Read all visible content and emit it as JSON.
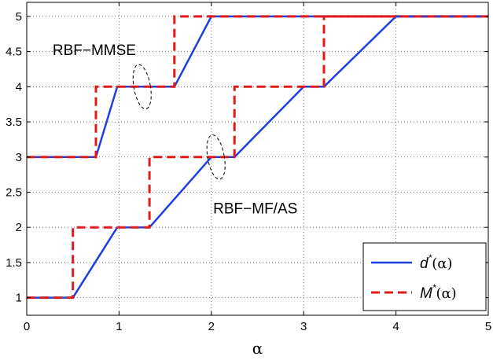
{
  "chart_data": {
    "type": "line",
    "xlabel": "α",
    "ylabel": "",
    "xlim": [
      0,
      5
    ],
    "ylim": [
      0.75,
      5.2
    ],
    "x_ticks": [
      "0",
      "1",
      "2",
      "3",
      "4",
      "5"
    ],
    "y_ticks": [
      "1",
      "1.5",
      "2",
      "2.5",
      "3",
      "3.5",
      "4",
      "4.5",
      "5"
    ],
    "grid": true,
    "legend_position": "bottom-right",
    "colors": {
      "d": "#1f3fe0",
      "M": "#e01a1a"
    },
    "series": [
      {
        "name": "d*(α)",
        "legend_base": "d",
        "legend_sup": "*",
        "legend_arg": "(α)",
        "style": "solid",
        "color": "#1f3fe0",
        "x": [
          0,
          0.75,
          0.98,
          1.6,
          2.0,
          5.0
        ],
        "y": [
          3,
          3,
          4,
          4,
          5,
          5
        ]
      },
      {
        "name": "M*(α)",
        "legend_base": "M",
        "legend_sup": "*",
        "legend_arg": "(α)",
        "style": "dashed",
        "color": "#e01a1a",
        "x": [
          0,
          0.75,
          0.75,
          1.6,
          1.6,
          5.0
        ],
        "y": [
          3,
          3,
          4,
          4,
          5,
          5
        ]
      },
      {
        "name": "d*(α)",
        "style": "solid",
        "color": "#1f3fe0",
        "x": [
          0,
          0.5,
          0.98,
          1.33,
          2.0,
          2.25,
          3.0,
          3.22,
          4.0,
          5.0
        ],
        "y": [
          1,
          1,
          2,
          2,
          3,
          3,
          4,
          4,
          5,
          5
        ]
      },
      {
        "name": "M*(α)",
        "style": "dashed",
        "color": "#e01a1a",
        "x": [
          0,
          0.5,
          0.5,
          1.33,
          1.33,
          2.25,
          2.25,
          3.22,
          3.22,
          5.0
        ],
        "y": [
          1,
          1,
          2,
          2,
          3,
          3,
          4,
          4,
          5,
          5
        ]
      }
    ],
    "annotations": [
      {
        "text": "RBF−MMSE",
        "x": 0.28,
        "y": 4.45
      },
      {
        "text": "RBF−MF/AS",
        "x": 2.02,
        "y": 2.2
      }
    ],
    "ellipses": [
      {
        "cx": 1.25,
        "cy": 4.0,
        "rx": 0.09,
        "ry": 0.32
      },
      {
        "cx": 2.05,
        "cy": 3.0,
        "rx": 0.09,
        "ry": 0.32
      }
    ]
  }
}
